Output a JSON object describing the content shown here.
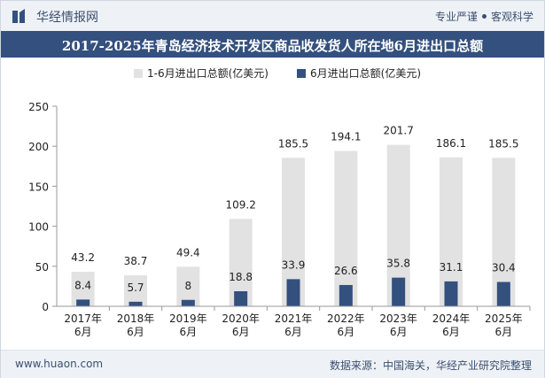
{
  "header": {
    "brand": "华经情报网",
    "slogan_left": "专业严谨",
    "slogan_right": "客观科学"
  },
  "title": "2017-2025年青岛经济技术开发区商品收发货人所在地6月进出口总额",
  "footer": {
    "website": "www.huaon.com",
    "source": "数据来源：中国海关，华经产业研究院整理"
  },
  "colors": {
    "series1": "#e2e2e2",
    "series2": "#33507e",
    "titlebar": "#33507e",
    "text": "#222222"
  },
  "chart_data": {
    "type": "bar",
    "categories": [
      [
        "2017年",
        "6月"
      ],
      [
        "2018年",
        "6月"
      ],
      [
        "2019年",
        "6月"
      ],
      [
        "2020年",
        "6月"
      ],
      [
        "2021年",
        "6月"
      ],
      [
        "2022年",
        "6月"
      ],
      [
        "2023年",
        "6月"
      ],
      [
        "2024年",
        "6月"
      ],
      [
        "2025年",
        "6月"
      ]
    ],
    "series": [
      {
        "name": "1-6月进出口总额(亿美元)",
        "values": [
          43.2,
          38.7,
          49.4,
          109.2,
          185.5,
          194.1,
          201.7,
          186.1,
          185.5
        ]
      },
      {
        "name": "6月进出口总额(亿美元)",
        "values": [
          8.4,
          5.7,
          8,
          18.8,
          33.9,
          26.6,
          35.8,
          31.1,
          30.4
        ]
      }
    ],
    "ylim": [
      0,
      250
    ],
    "yticks": [
      0,
      50,
      100,
      150,
      200,
      250
    ],
    "legend_position": "top",
    "grid": false
  }
}
